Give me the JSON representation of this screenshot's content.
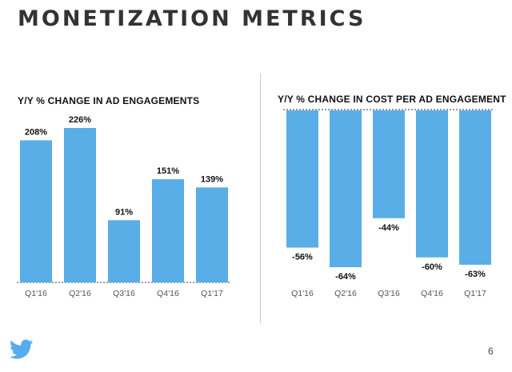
{
  "page": {
    "title": "MONETIZATION METRICS",
    "page_number": "6",
    "logo_icon": "twitter-bird-icon",
    "colors": {
      "bar": "#5aaee8",
      "text": "#111111",
      "logo": "#55acee"
    }
  },
  "chart_data": [
    {
      "type": "bar",
      "title": "Y/Y % CHANGE IN AD ENGAGEMENTS",
      "xlabel": "",
      "ylabel": "",
      "categories": [
        "Q1'16",
        "Q2'16",
        "Q3'16",
        "Q4'16",
        "Q1'17"
      ],
      "values": [
        208,
        226,
        91,
        151,
        139
      ],
      "value_labels": [
        "208%",
        "226%",
        "91%",
        "151%",
        "139%"
      ],
      "ylim": [
        0,
        226
      ],
      "grid": false,
      "baseline": "dashed"
    },
    {
      "type": "bar",
      "title": "Y/Y % CHANGE IN COST PER AD ENGAGEMENT",
      "xlabel": "",
      "ylabel": "",
      "categories": [
        "Q1'16",
        "Q2'16",
        "Q3'16",
        "Q4'16",
        "Q1'17"
      ],
      "values": [
        -56,
        -64,
        -44,
        -60,
        -63
      ],
      "value_labels": [
        "-56%",
        "-64%",
        "-44%",
        "-60%",
        "-63%"
      ],
      "ylim": [
        -64,
        0
      ],
      "grid": false,
      "baseline": "dashed"
    }
  ]
}
